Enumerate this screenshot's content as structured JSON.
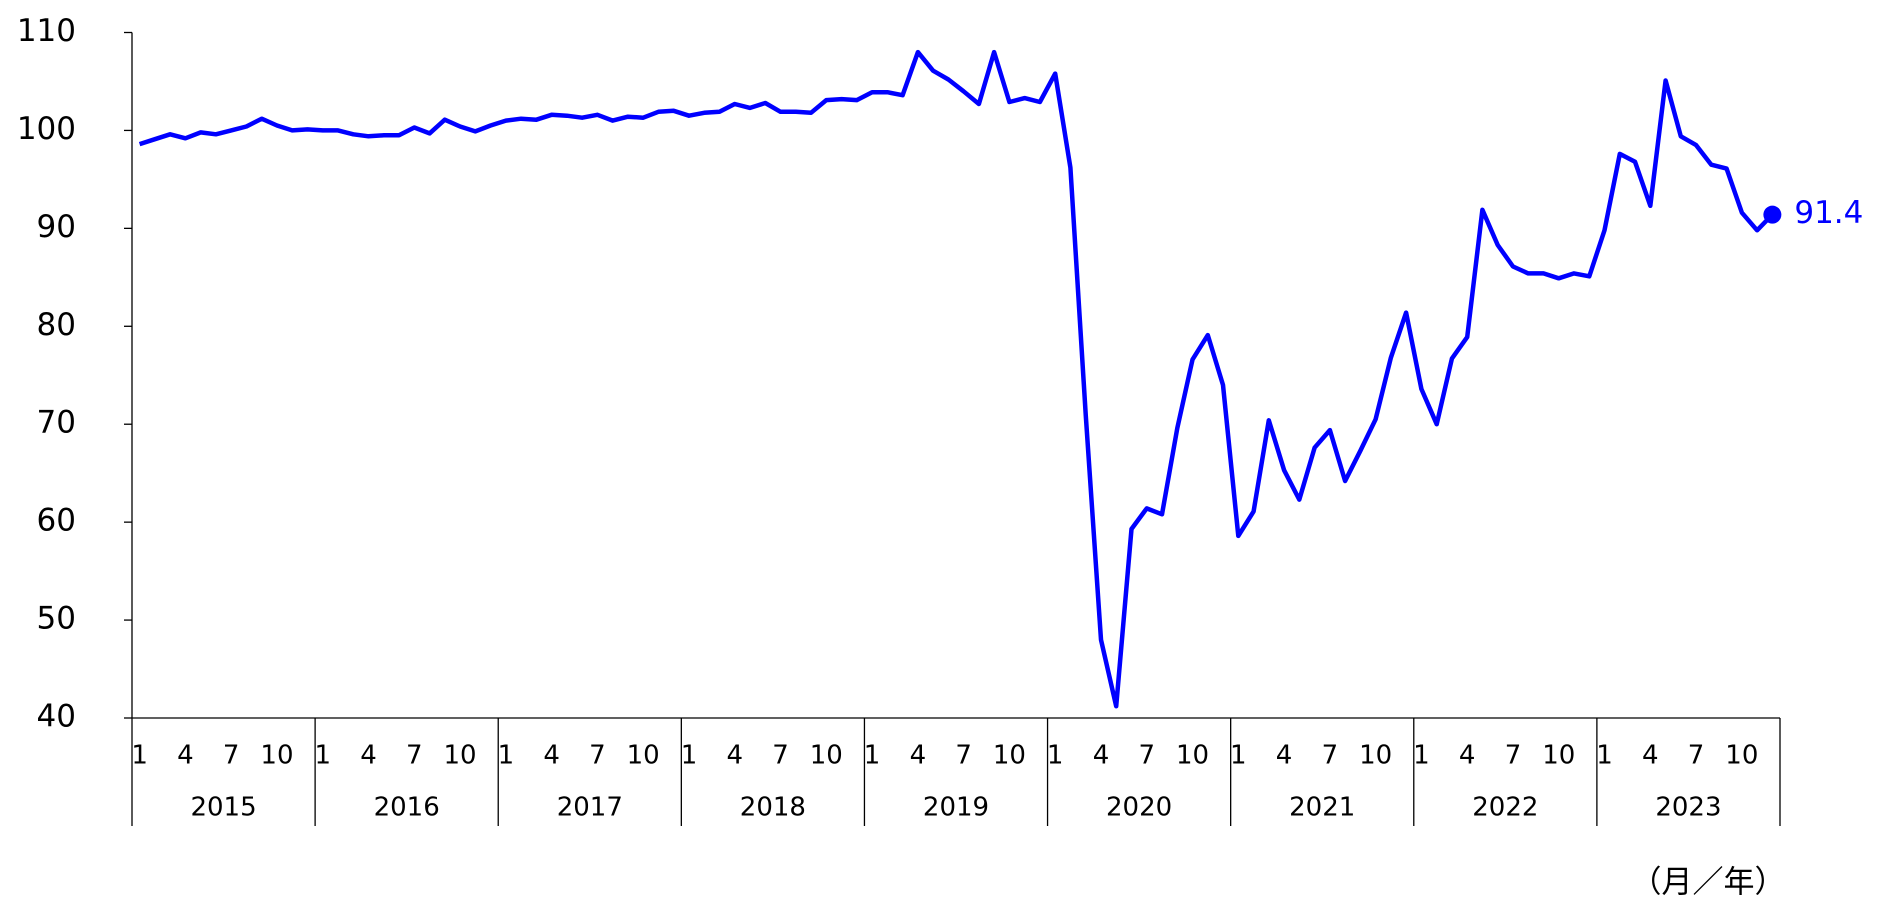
{
  "chart_data": {
    "type": "line",
    "years": [
      2015,
      2016,
      2017,
      2018,
      2019,
      2020,
      2021,
      2022,
      2023
    ],
    "month_ticks": [
      1,
      4,
      7,
      10
    ],
    "x_axis_label": "（月／年）",
    "ylim": [
      40,
      110
    ],
    "yticks": [
      40,
      50,
      60,
      70,
      80,
      90,
      100,
      110
    ],
    "color": "#0000ff",
    "values": [
      98.6,
      99.1,
      99.6,
      99.2,
      99.8,
      99.6,
      100.0,
      100.4,
      101.2,
      100.5,
      100.0,
      100.1,
      100.0,
      100.0,
      99.6,
      99.4,
      99.5,
      99.5,
      100.3,
      99.7,
      101.1,
      100.4,
      99.9,
      100.5,
      101.0,
      101.2,
      101.1,
      101.6,
      101.5,
      101.3,
      101.6,
      101.0,
      101.4,
      101.3,
      101.9,
      102.0,
      101.5,
      101.8,
      101.9,
      102.7,
      102.3,
      102.8,
      101.9,
      101.9,
      101.8,
      103.1,
      103.2,
      103.1,
      103.9,
      103.9,
      103.6,
      108.0,
      106.1,
      105.2,
      104.0,
      102.7,
      108.0,
      102.9,
      103.3,
      102.9,
      105.8,
      96.2,
      71.0,
      48.0,
      41.2,
      59.3,
      61.4,
      60.8,
      69.6,
      76.6,
      79.1,
      74.0,
      58.6,
      61.1,
      70.4,
      65.3,
      62.3,
      67.6,
      69.4,
      64.2,
      67.3,
      70.5,
      76.8,
      81.4,
      73.6,
      70.0,
      76.7,
      78.9,
      91.9,
      88.3,
      86.1,
      85.4,
      85.4,
      84.9,
      85.4,
      85.1,
      89.8,
      97.6,
      96.8,
      92.3,
      105.1,
      99.4,
      98.5,
      96.5,
      96.1,
      91.6,
      89.8,
      91.4
    ]
  }
}
